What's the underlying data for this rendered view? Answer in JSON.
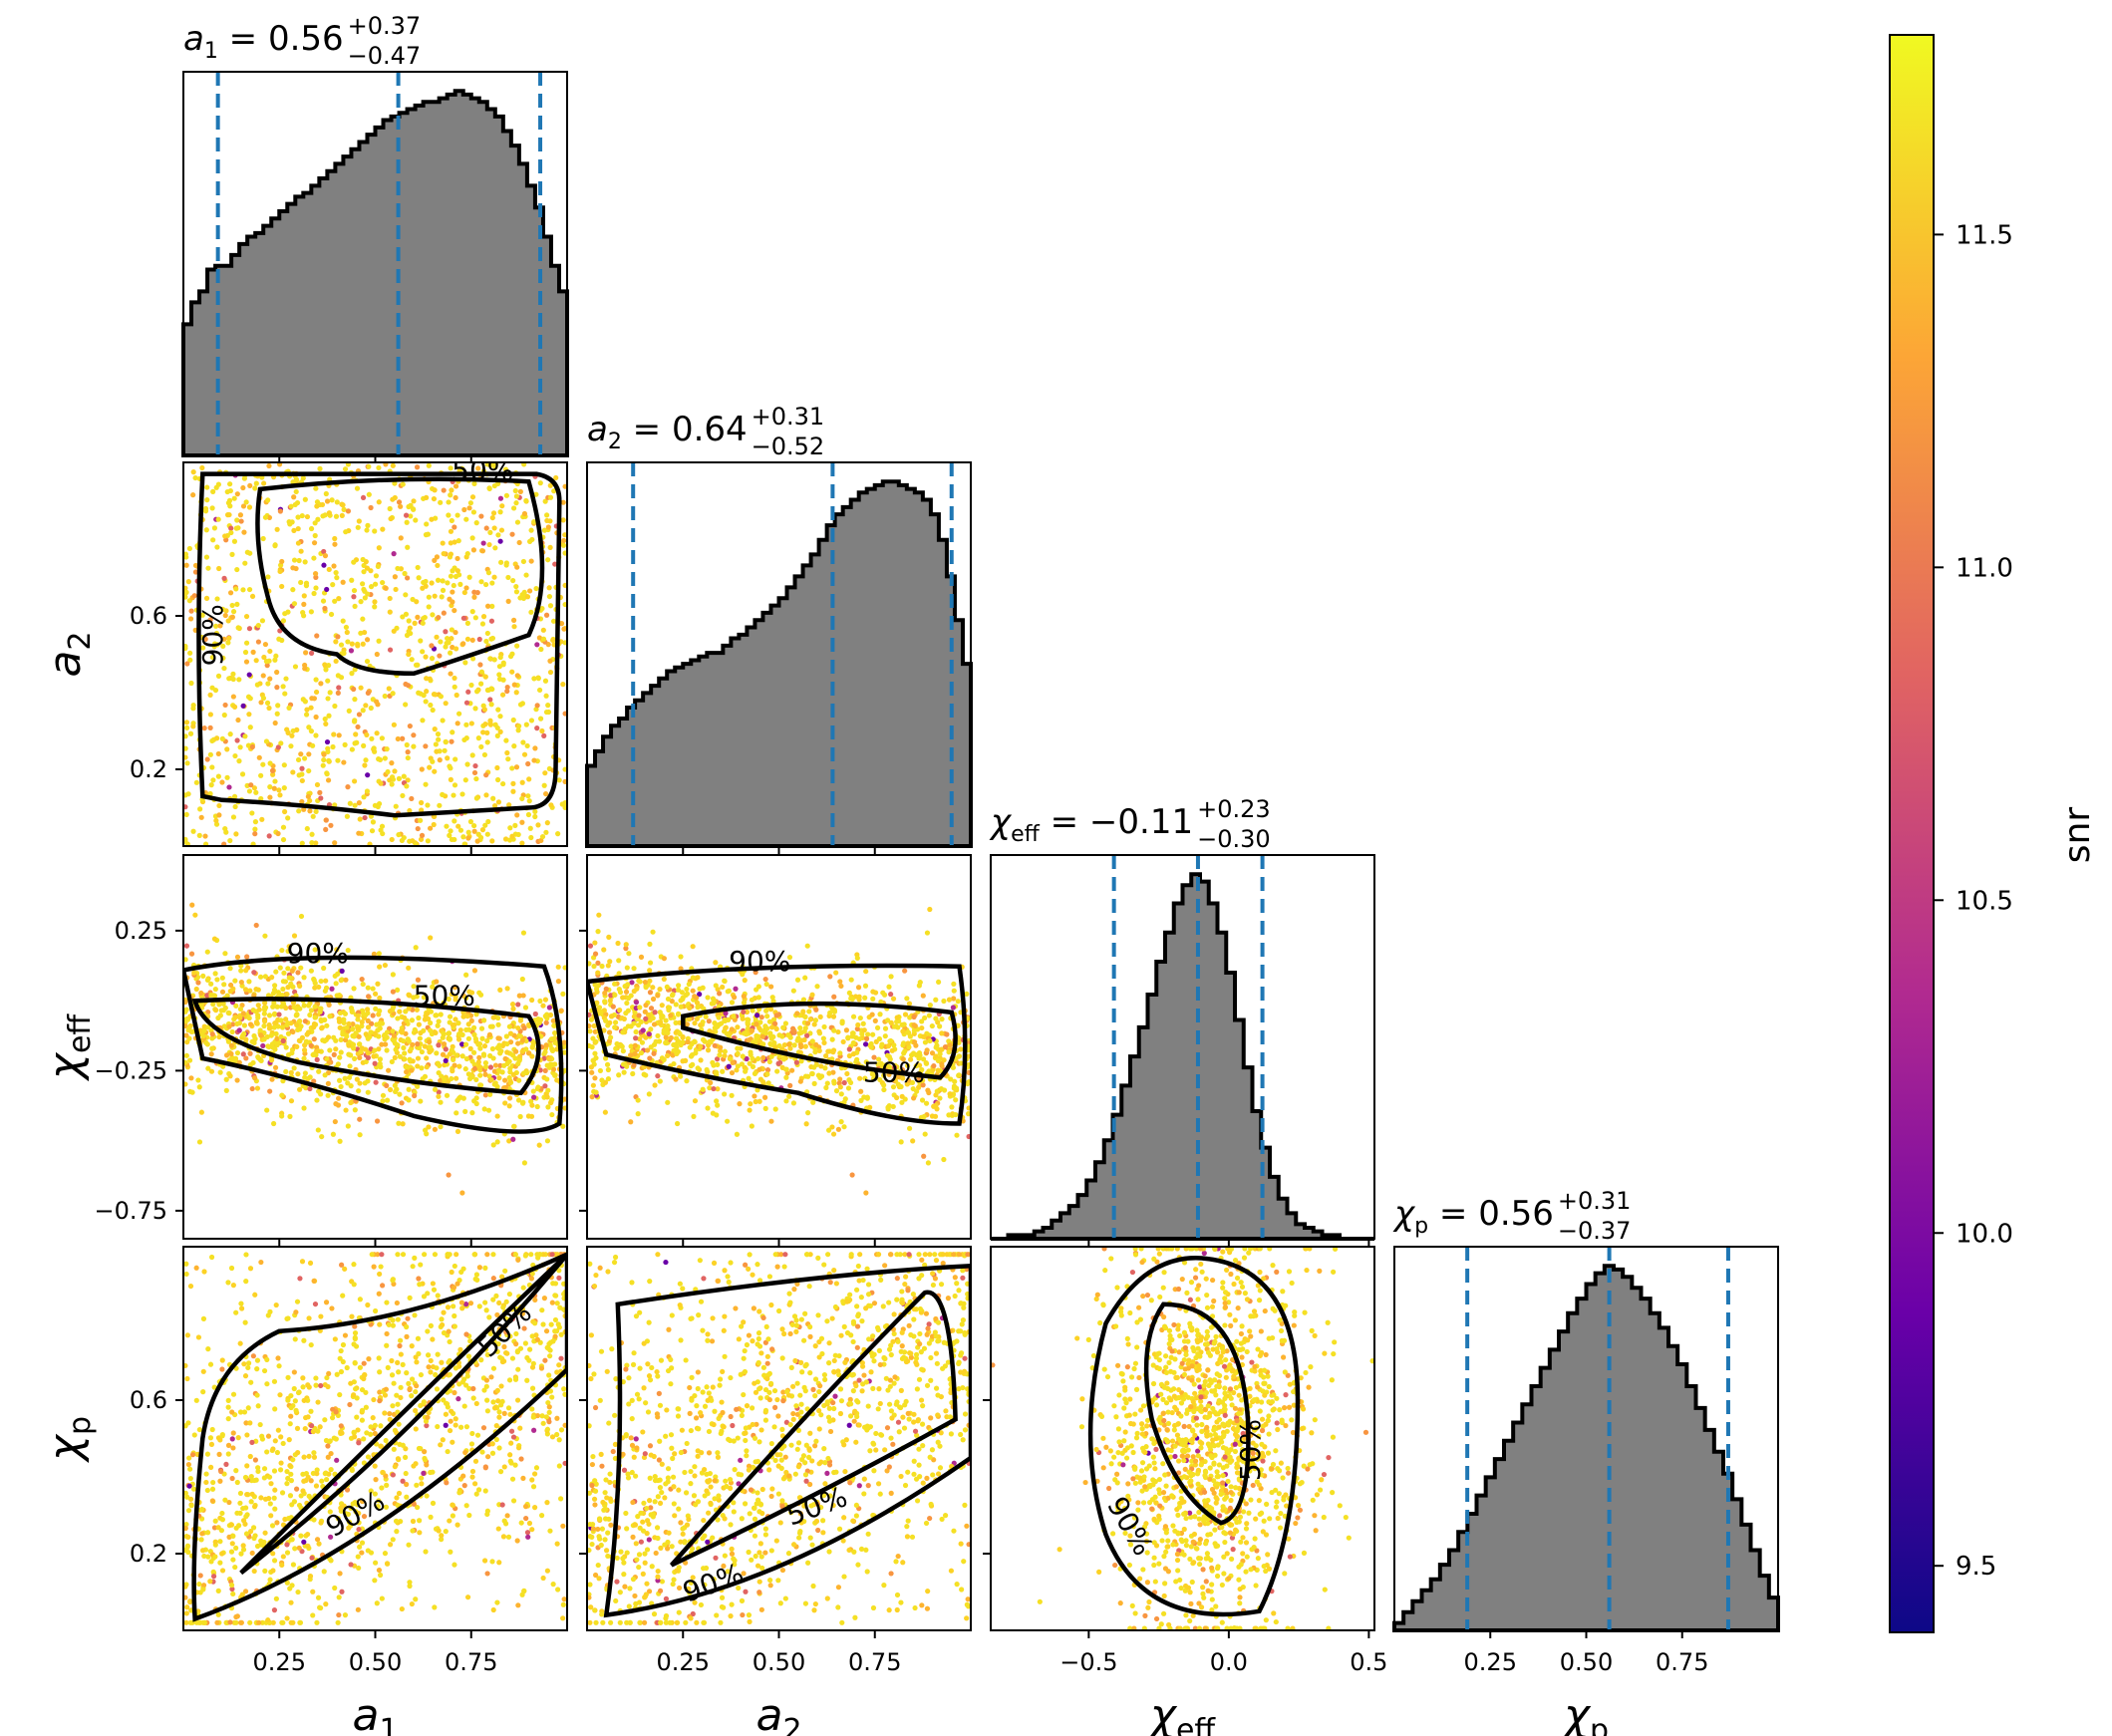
{
  "figure": {
    "type": "corner-plot",
    "colorbar": {
      "label": "snr",
      "range": [
        9.4,
        11.8
      ],
      "ticks": [
        9.5,
        10.0,
        10.5,
        11.0,
        11.5
      ],
      "tick_labels": [
        "9.5",
        "10.0",
        "10.5",
        "11.0",
        "11.5"
      ],
      "colormap": "plasma",
      "colors": [
        "#0d0887",
        "#6a00a8",
        "#b12a90",
        "#e16462",
        "#fca636",
        "#f0f921"
      ]
    },
    "histogram_fill": "#808080",
    "quantile_line_color": "#1f77b4",
    "contour_levels": [
      "50%",
      "90%"
    ]
  },
  "chart_data": {
    "type": "corner",
    "parameters": [
      {
        "name": "a1",
        "axis_label_main": "a",
        "axis_label_sub": "1",
        "title_main": "a",
        "title_sub": "1",
        "title_value": " = 0.56",
        "title_plus": "+0.37",
        "title_minus": "−0.47",
        "median": 0.56,
        "lower": 0.09,
        "upper": 0.93,
        "range": [
          0.0,
          1.0
        ],
        "ticks": [
          0.25,
          0.5,
          0.75
        ],
        "tick_labels": [
          "0.25",
          "0.50",
          "0.75"
        ],
        "hist_values": [
          0.36,
          0.42,
          0.45,
          0.51,
          0.52,
          0.52,
          0.55,
          0.58,
          0.6,
          0.61,
          0.63,
          0.65,
          0.67,
          0.69,
          0.71,
          0.72,
          0.74,
          0.76,
          0.78,
          0.8,
          0.82,
          0.84,
          0.86,
          0.88,
          0.9,
          0.92,
          0.93,
          0.94,
          0.95,
          0.96,
          0.97,
          0.97,
          0.98,
          0.99,
          1.0,
          0.99,
          0.98,
          0.97,
          0.95,
          0.93,
          0.89,
          0.85,
          0.8,
          0.74,
          0.68,
          0.6,
          0.52,
          0.45
        ]
      },
      {
        "name": "a2",
        "axis_label_main": "a",
        "axis_label_sub": "2",
        "title_main": "a",
        "title_sub": "2",
        "title_value": " = 0.64",
        "title_plus": "+0.31",
        "title_minus": "−0.52",
        "median": 0.64,
        "lower": 0.12,
        "upper": 0.95,
        "range": [
          0.0,
          1.0
        ],
        "ticks": [
          0.25,
          0.5,
          0.75
        ],
        "tick_labels": [
          "0.25",
          "0.50",
          "0.75"
        ],
        "y_ticks": [
          0.2,
          0.6
        ],
        "y_tick_labels": [
          "0.2",
          "0.6"
        ],
        "hist_values": [
          0.22,
          0.26,
          0.3,
          0.33,
          0.35,
          0.38,
          0.4,
          0.42,
          0.44,
          0.46,
          0.48,
          0.49,
          0.5,
          0.51,
          0.52,
          0.53,
          0.53,
          0.55,
          0.57,
          0.58,
          0.6,
          0.62,
          0.64,
          0.66,
          0.68,
          0.71,
          0.74,
          0.77,
          0.8,
          0.84,
          0.88,
          0.91,
          0.93,
          0.95,
          0.97,
          0.98,
          0.99,
          1.0,
          1.0,
          0.99,
          0.98,
          0.97,
          0.95,
          0.91,
          0.84,
          0.74,
          0.62,
          0.5
        ]
      },
      {
        "name": "chi_eff",
        "axis_label_main": "χ",
        "axis_label_sub": "eff",
        "title_main": "χ",
        "title_sub": "eff",
        "title_value": " = −0.11",
        "title_plus": "+0.23",
        "title_minus": "−0.30",
        "median": -0.11,
        "lower": -0.41,
        "upper": 0.12,
        "range": [
          -0.85,
          0.52
        ],
        "ticks": [
          -0.5,
          0.0,
          0.5
        ],
        "tick_labels": [
          "−0.5",
          "0.0",
          "0.5"
        ],
        "y_ticks": [
          -0.75,
          -0.25,
          0.25
        ],
        "y_tick_labels": [
          "−0.75",
          "−0.25",
          "0.25"
        ],
        "hist_values": [
          0.0,
          0.0,
          0.01,
          0.01,
          0.01,
          0.02,
          0.03,
          0.05,
          0.07,
          0.09,
          0.12,
          0.16,
          0.21,
          0.27,
          0.34,
          0.42,
          0.5,
          0.58,
          0.67,
          0.76,
          0.84,
          0.92,
          0.97,
          1.0,
          0.98,
          0.92,
          0.84,
          0.73,
          0.6,
          0.47,
          0.35,
          0.25,
          0.17,
          0.11,
          0.07,
          0.04,
          0.03,
          0.02,
          0.01,
          0.01,
          0.0,
          0.0,
          0.0,
          0.0
        ]
      },
      {
        "name": "chi_p",
        "axis_label_main": "χ",
        "axis_label_sub": "p",
        "title_main": "χ",
        "title_sub": "p",
        "title_value": " = 0.56",
        "title_plus": "+0.31",
        "title_minus": "−0.37",
        "median": 0.56,
        "lower": 0.19,
        "upper": 0.87,
        "range": [
          0.0,
          1.0
        ],
        "ticks": [
          0.25,
          0.5,
          0.75
        ],
        "tick_labels": [
          "0.25",
          "0.50",
          "0.75"
        ],
        "y_ticks": [
          0.2,
          0.6
        ],
        "y_tick_labels": [
          "0.2",
          "0.6"
        ],
        "hist_values": [
          0.02,
          0.05,
          0.08,
          0.11,
          0.14,
          0.18,
          0.22,
          0.27,
          0.32,
          0.37,
          0.42,
          0.47,
          0.52,
          0.57,
          0.62,
          0.67,
          0.72,
          0.77,
          0.82,
          0.87,
          0.91,
          0.95,
          0.98,
          1.0,
          0.99,
          0.97,
          0.94,
          0.91,
          0.87,
          0.83,
          0.78,
          0.73,
          0.67,
          0.61,
          0.55,
          0.49,
          0.43,
          0.36,
          0.29,
          0.22,
          0.15,
          0.09
        ]
      }
    ]
  }
}
